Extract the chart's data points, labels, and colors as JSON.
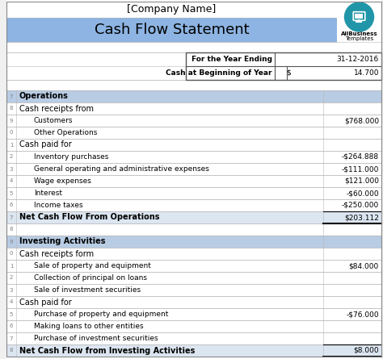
{
  "title_company": "[Company Name]",
  "title_main": "Cash Flow Statement",
  "header_date_label": "For the Year Ending",
  "header_date_value": "31-12-2016",
  "header_cash_label": "Cash at Beginning of Year",
  "header_cash_symbol": "$",
  "header_cash_value": "14.700",
  "rows": [
    {
      "indent": 0,
      "label": "Operations",
      "value": "",
      "style": "section_header"
    },
    {
      "indent": 0,
      "label": "Cash receipts from",
      "value": "",
      "style": "sub_header"
    },
    {
      "indent": 1,
      "label": "Customers",
      "value": "$768.000",
      "style": "normal"
    },
    {
      "indent": 1,
      "label": "Other Operations",
      "value": "",
      "style": "normal"
    },
    {
      "indent": 0,
      "label": "Cash paid for",
      "value": "",
      "style": "sub_header"
    },
    {
      "indent": 1,
      "label": "Inventory purchases",
      "value": "-$264.888",
      "style": "normal"
    },
    {
      "indent": 1,
      "label": "General operating and administrative expenses",
      "value": "-$111.000",
      "style": "normal"
    },
    {
      "indent": 1,
      "label": "Wage expenses",
      "value": "$121.000",
      "style": "normal"
    },
    {
      "indent": 1,
      "label": "Interest",
      "value": "-$60.000",
      "style": "normal"
    },
    {
      "indent": 1,
      "label": "Income taxes",
      "value": "-$250.000",
      "style": "normal"
    },
    {
      "indent": 0,
      "label": "Net Cash Flow From Operations",
      "value": "$203.112",
      "style": "total"
    },
    {
      "indent": 0,
      "label": "",
      "value": "",
      "style": "empty"
    },
    {
      "indent": 0,
      "label": "Investing Activities",
      "value": "",
      "style": "section_header"
    },
    {
      "indent": 0,
      "label": "Cash receipts form",
      "value": "",
      "style": "sub_header"
    },
    {
      "indent": 1,
      "label": "Sale of property and equipment",
      "value": "$84.000",
      "style": "normal"
    },
    {
      "indent": 1,
      "label": "Collection of principal on loans",
      "value": "",
      "style": "normal"
    },
    {
      "indent": 1,
      "label": "Sale of investment securities",
      "value": "",
      "style": "normal"
    },
    {
      "indent": 0,
      "label": "Cash paid for",
      "value": "",
      "style": "sub_header"
    },
    {
      "indent": 1,
      "label": "Purchase of property and equipment",
      "value": "-$76.000",
      "style": "normal"
    },
    {
      "indent": 1,
      "label": "Making loans to other entities",
      "value": "",
      "style": "normal"
    },
    {
      "indent": 1,
      "label": "Purchase of investment securities",
      "value": "",
      "style": "normal"
    },
    {
      "indent": 0,
      "label": "Net Cash Flow from Investing Activities",
      "value": "$8.000",
      "style": "total"
    }
  ],
  "row_numbers": [
    "7",
    "8",
    "9",
    "0",
    "1",
    "2",
    "3",
    "4",
    "5",
    "6",
    "7",
    "8",
    "9",
    "0",
    "1",
    "2",
    "3",
    "4",
    "5",
    "6",
    "7",
    "8"
  ],
  "colors": {
    "header_bg": "#8db4e2",
    "section_header_bg": "#b8cce4",
    "total_bg": "#dce6f1",
    "grid_line": "#b8b8b8",
    "row_num_text": "#808080",
    "white": "#ffffff",
    "black": "#000000",
    "light_gray": "#f0f0f0"
  },
  "logo_bg": "#2196a8",
  "logo_text1": "AllBusiness",
  "logo_text2": "Templates",
  "fig_w": 4.74,
  "fig_h": 4.45,
  "dpi": 100
}
